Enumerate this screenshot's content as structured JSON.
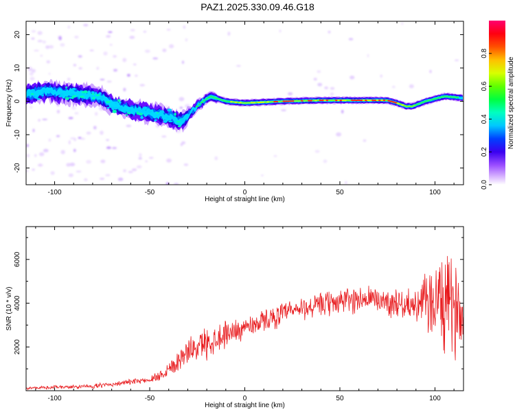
{
  "title": "PAZ1.2025.330.09.46.G18",
  "colors": {
    "snr_line": "#e8191c",
    "axis": "#000000",
    "spectrogram_bg": "#ffffff"
  },
  "chart_data": [
    {
      "type": "heatmap",
      "name": "spectrogram",
      "xlabel": "Height of straight line (km)",
      "ylabel": "Frequency (Hz)",
      "xlim": [
        -115,
        115
      ],
      "ylim": [
        -25,
        24
      ],
      "xticks": [
        -100,
        -50,
        0,
        50,
        100
      ],
      "yticks": [
        -20,
        -10,
        0,
        10,
        20
      ],
      "ridge": {
        "x": [
          -115,
          -105,
          -95,
          -85,
          -75,
          -70,
          -60,
          -50,
          -40,
          -35,
          -32,
          -28,
          -22,
          -18,
          -10,
          0,
          20,
          40,
          60,
          75,
          80,
          85,
          88,
          95,
          105,
          115
        ],
        "y": [
          2,
          3,
          2.5,
          2,
          1,
          -1,
          -2.5,
          -3.5,
          -4.5,
          -6,
          -5.5,
          -3,
          0,
          1.5,
          0,
          -0.5,
          0,
          0.3,
          0.3,
          0.3,
          -0.5,
          -1.5,
          -1.5,
          0,
          1.5,
          1
        ]
      },
      "colorbar": {
        "label": "Normalized spectral amplitude",
        "range": [
          0,
          1
        ],
        "ticks": [
          "0.0",
          "0.2",
          "0.4",
          "0.6",
          "0.8"
        ]
      }
    },
    {
      "type": "line",
      "name": "snr",
      "xlabel": "Height of straight line (km)",
      "ylabel": "SNR (10 * v/v)",
      "xlim": [
        -115,
        115
      ],
      "ylim": [
        0,
        7500
      ],
      "xticks": [
        -100,
        -50,
        0,
        50,
        100
      ],
      "yticks": [
        2000,
        4000,
        6000
      ],
      "trend": {
        "x": [
          -115,
          -80,
          -60,
          -50,
          -45,
          -40,
          -35,
          -30,
          -20,
          -10,
          0,
          10,
          20,
          30,
          40,
          50,
          60,
          70,
          80,
          85,
          90,
          95,
          100,
          105,
          110,
          115
        ],
        "y": [
          120,
          200,
          400,
          500,
          700,
          1000,
          1400,
          1800,
          2200,
          2600,
          2900,
          3200,
          3500,
          3750,
          3900,
          4100,
          4200,
          4150,
          4000,
          3950,
          3900,
          4000,
          4100,
          4000,
          3800,
          3700
        ]
      },
      "spread": {
        "x": [
          -115,
          -70,
          -50,
          -40,
          -30,
          -20,
          0,
          30,
          60,
          90,
          95,
          105,
          115
        ],
        "y": [
          60,
          100,
          120,
          400,
          500,
          700,
          450,
          500,
          600,
          600,
          1300,
          2200,
          1700
        ]
      },
      "series_color": "#e8191c"
    }
  ]
}
